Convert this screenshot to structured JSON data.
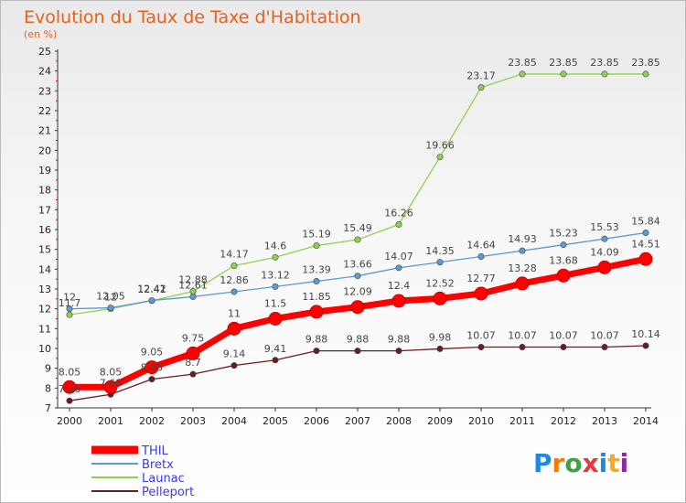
{
  "chart_data": {
    "type": "line",
    "title": "Evolution du Taux de Taxe d'Habitation",
    "subtitle": "(en %)",
    "x": [
      "2000",
      "2001",
      "2002",
      "2003",
      "2004",
      "2005",
      "2006",
      "2007",
      "2008",
      "2009",
      "2010",
      "2011",
      "2012",
      "2013",
      "2014"
    ],
    "ylim": [
      7,
      25
    ],
    "yticks": [
      7,
      8,
      9,
      10,
      11,
      12,
      13,
      14,
      15,
      16,
      17,
      18,
      19,
      20,
      21,
      22,
      23,
      24,
      25
    ],
    "grid": false,
    "legend_position": "bottom-left",
    "series": [
      {
        "name": "THIL",
        "color": "#ff0000",
        "values": [
          8.05,
          8.05,
          9.05,
          9.75,
          11,
          11.5,
          11.85,
          12.09,
          12.4,
          12.52,
          12.77,
          13.28,
          13.68,
          14.09,
          14.51
        ],
        "labels": [
          "8.05",
          "8.05",
          "9.05",
          "9.75",
          "11",
          "11.5",
          "11.85",
          "12.09",
          "12.4",
          "12.52",
          "12.77",
          "13.28",
          "13.68",
          "14.09",
          "14.51"
        ]
      },
      {
        "name": "Bretx",
        "color": "#5b9bd5",
        "values": [
          12,
          12.05,
          12.42,
          12.61,
          12.86,
          13.12,
          13.39,
          13.66,
          14.07,
          14.35,
          14.64,
          14.93,
          15.23,
          15.53,
          15.84
        ],
        "labels": [
          "12",
          "12.05",
          "12.42",
          "12.61",
          "12.86",
          "13.12",
          "13.39",
          "13.66",
          "14.07",
          "14.35",
          "14.64",
          "14.93",
          "15.23",
          "15.53",
          "15.84"
        ]
      },
      {
        "name": "Launac",
        "color": "#8fd14f",
        "values": [
          11.7,
          12,
          12.41,
          12.88,
          14.17,
          14.6,
          15.19,
          15.49,
          16.26,
          19.66,
          23.17,
          23.85,
          23.85,
          23.85,
          23.85
        ],
        "labels": [
          "11.7",
          "12",
          "12.41",
          "12.88",
          "14.17",
          "14.6",
          "15.19",
          "15.49",
          "16.26",
          "19.66",
          "23.17",
          "23.85",
          "23.85",
          "23.85",
          "23.85"
        ]
      },
      {
        "name": "Pelleport",
        "color": "#6b1c1c",
        "values": [
          7.36,
          7.68,
          8.45,
          8.7,
          9.14,
          9.41,
          9.88,
          9.88,
          9.88,
          9.98,
          10.07,
          10.07,
          10.07,
          10.07,
          10.14
        ],
        "labels": [
          "7.36",
          "7.68",
          "8.45",
          "8.7",
          "9.14",
          "9.41",
          "9.88",
          "9.88",
          "9.88",
          "9.98",
          "10.07",
          "10.07",
          "10.07",
          "10.07",
          "10.14"
        ]
      }
    ]
  },
  "logo": {
    "letters": [
      "P",
      "r",
      "o",
      "x",
      "i",
      "t",
      "i"
    ],
    "colors": [
      "#1e88e5",
      "#f57c00",
      "#43a047",
      "#e53935",
      "#1e88e5",
      "#f9a825",
      "#8e24aa"
    ]
  }
}
